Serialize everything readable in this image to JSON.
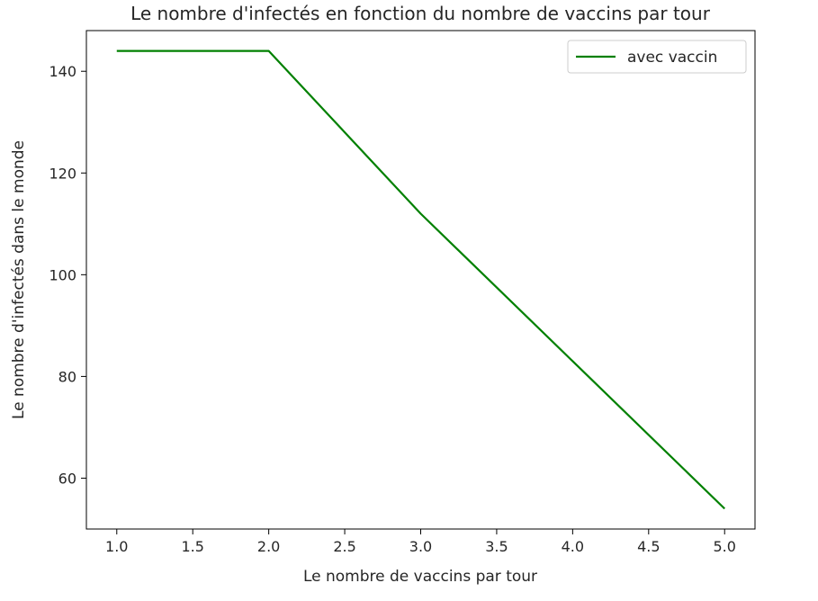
{
  "chart_data": {
    "type": "line",
    "title": "Le nombre d'infectés en fonction du nombre de vaccins par tour",
    "xlabel": "Le nombre de vaccins par tour",
    "ylabel": "Le nombre d'infectés dans le monde",
    "xlim": [
      0.8,
      5.2
    ],
    "ylim": [
      50,
      148
    ],
    "xticks": [
      1.0,
      1.5,
      2.0,
      2.5,
      3.0,
      3.5,
      4.0,
      4.5,
      5.0
    ],
    "xtick_labels": [
      "1.0",
      "1.5",
      "2.0",
      "2.5",
      "3.0",
      "3.5",
      "4.0",
      "4.5",
      "5.0"
    ],
    "yticks": [
      60,
      80,
      100,
      120,
      140
    ],
    "ytick_labels": [
      "60",
      "80",
      "100",
      "120",
      "140"
    ],
    "grid": false,
    "legend_position": "top-right",
    "series": [
      {
        "name": "avec vaccin",
        "color": "#008000",
        "x": [
          1,
          2,
          3,
          4,
          5
        ],
        "y": [
          144,
          144,
          112,
          83,
          54
        ]
      }
    ]
  }
}
